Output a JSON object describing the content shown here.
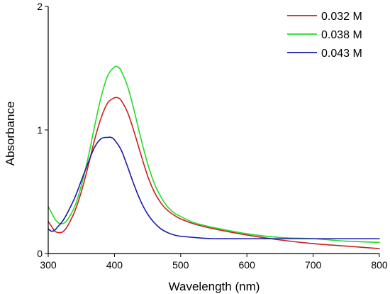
{
  "chart_data": {
    "type": "line",
    "xlabel": "Wavelength (nm)",
    "ylabel": "Absorbance",
    "xlim": [
      300,
      800
    ],
    "ylim": [
      0,
      2
    ],
    "xticks": [
      300,
      400,
      500,
      600,
      700,
      800
    ],
    "yticks": [
      0,
      1,
      2
    ],
    "xtick_labels": [
      "300",
      "400",
      "500",
      "600",
      "700",
      "800"
    ],
    "ytick_labels": [
      "0",
      "1",
      "2"
    ],
    "grid": false,
    "legend_position": "top-right",
    "series": [
      {
        "name": "0.032 M",
        "color": "#cc2020",
        "x": [
          300,
          305,
          310,
          315,
          320,
          325,
          330,
          340,
          350,
          360,
          370,
          380,
          390,
          400,
          405,
          410,
          420,
          430,
          440,
          450,
          460,
          470,
          480,
          490,
          500,
          520,
          550,
          600,
          650,
          700,
          750,
          800
        ],
        "y": [
          0.26,
          0.22,
          0.18,
          0.17,
          0.17,
          0.19,
          0.23,
          0.34,
          0.5,
          0.7,
          0.92,
          1.1,
          1.22,
          1.26,
          1.26,
          1.24,
          1.14,
          0.98,
          0.8,
          0.63,
          0.5,
          0.41,
          0.35,
          0.31,
          0.28,
          0.24,
          0.2,
          0.15,
          0.11,
          0.08,
          0.06,
          0.04
        ]
      },
      {
        "name": "0.038 M",
        "color": "#22dd22",
        "x": [
          300,
          305,
          310,
          315,
          320,
          325,
          330,
          340,
          350,
          360,
          370,
          380,
          390,
          400,
          405,
          410,
          420,
          430,
          440,
          450,
          460,
          470,
          480,
          490,
          500,
          520,
          550,
          600,
          650,
          700,
          750,
          800
        ],
        "y": [
          0.38,
          0.33,
          0.28,
          0.25,
          0.24,
          0.25,
          0.28,
          0.38,
          0.55,
          0.77,
          1.03,
          1.27,
          1.44,
          1.51,
          1.51,
          1.48,
          1.35,
          1.15,
          0.93,
          0.73,
          0.57,
          0.46,
          0.38,
          0.33,
          0.3,
          0.25,
          0.21,
          0.16,
          0.13,
          0.12,
          0.1,
          0.09
        ]
      },
      {
        "name": "0.043 M",
        "color": "#1a1aaa",
        "x": [
          300,
          305,
          310,
          315,
          320,
          325,
          330,
          340,
          350,
          360,
          370,
          380,
          390,
          395,
          400,
          410,
          420,
          430,
          440,
          450,
          460,
          470,
          480,
          490,
          500,
          520,
          550,
          600,
          650,
          700,
          750,
          800
        ],
        "y": [
          0.2,
          0.18,
          0.19,
          0.22,
          0.25,
          0.29,
          0.34,
          0.45,
          0.59,
          0.73,
          0.86,
          0.93,
          0.94,
          0.94,
          0.92,
          0.84,
          0.7,
          0.55,
          0.42,
          0.32,
          0.25,
          0.2,
          0.17,
          0.15,
          0.14,
          0.13,
          0.12,
          0.12,
          0.12,
          0.12,
          0.12,
          0.12
        ]
      }
    ]
  }
}
